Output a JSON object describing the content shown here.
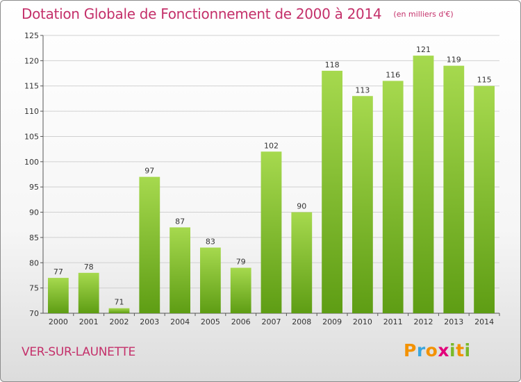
{
  "header": {
    "title": "Dotation Globale de Fonctionnement de 2000 à 2014",
    "subtitle": "(en milliers d'€)"
  },
  "footer": {
    "commune": "VER-SUR-LAUNETTE",
    "logo_text": "Proxiti"
  },
  "colors": {
    "title": "#c4306a",
    "bar_light": "#a6d94e",
    "bar_dark": "#5e9d14",
    "grid": "#d0d0d0",
    "axis": "#555555"
  },
  "chart_data": {
    "type": "bar",
    "categories": [
      "2000",
      "2001",
      "2002",
      "2003",
      "2004",
      "2005",
      "2006",
      "2007",
      "2008",
      "2009",
      "2010",
      "2011",
      "2012",
      "2013",
      "2014"
    ],
    "values": [
      77,
      78,
      71,
      97,
      87,
      83,
      79,
      102,
      90,
      118,
      113,
      116,
      121,
      119,
      115
    ],
    "ylim": [
      70,
      125
    ],
    "yticks": [
      70,
      75,
      80,
      85,
      90,
      95,
      100,
      105,
      110,
      115,
      120,
      125
    ],
    "grid": true,
    "data_labels": true
  }
}
